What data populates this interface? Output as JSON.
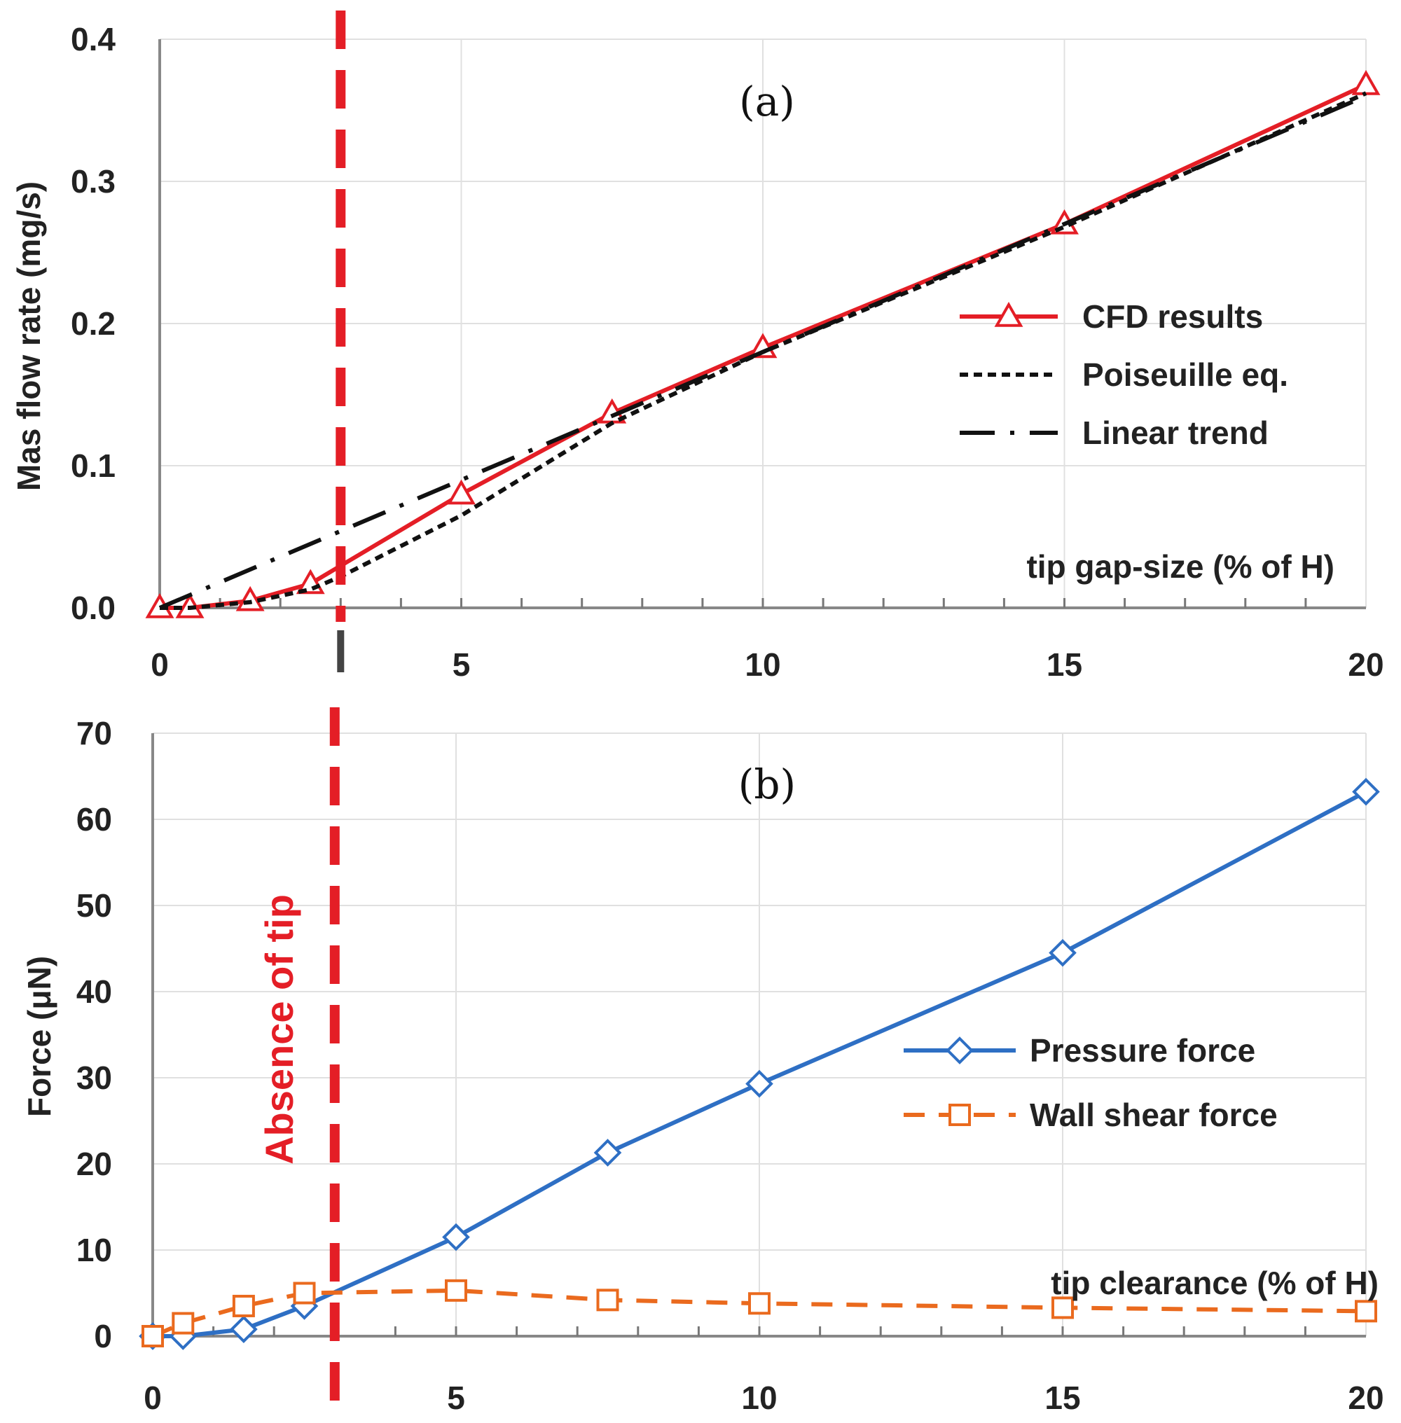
{
  "chart_data": [
    {
      "type": "line",
      "panel_label": "(a)",
      "ylabel": "Mas flow rate (mg/s)",
      "xlabel": "tip gap-size (% of H)",
      "xlim": [
        0,
        20
      ],
      "ylim": [
        0,
        0.4
      ],
      "xticks": [
        "0",
        "5",
        "10",
        "15",
        "20"
      ],
      "yticks": [
        "0.0",
        "0.1",
        "0.2",
        "0.3",
        "0.4"
      ],
      "grid": true,
      "legend_position": "center-right",
      "series": [
        {
          "name": "CFD results",
          "color": "#e41e26",
          "style": "solid",
          "marker": "triangle",
          "x": [
            0,
            0.5,
            1.5,
            2.5,
            5,
            7.5,
            10,
            15,
            20
          ],
          "y": [
            0.0,
            0.0,
            0.005,
            0.017,
            0.08,
            0.137,
            0.183,
            0.27,
            0.368
          ]
        },
        {
          "name": "Poiseuille eq.",
          "color": "#111111",
          "style": "dotted",
          "marker": "none",
          "x": [
            0,
            0.5,
            1.5,
            2.5,
            3,
            5,
            7.5,
            10,
            15,
            20
          ],
          "y": [
            0.0,
            0.0,
            0.004,
            0.013,
            0.022,
            0.065,
            0.13,
            0.18,
            0.268,
            0.362
          ]
        },
        {
          "name": "Linear trend",
          "color": "#111111",
          "style": "dashdot",
          "marker": "none",
          "x": [
            0,
            20
          ],
          "y": [
            0.0,
            0.36
          ]
        }
      ]
    },
    {
      "type": "line",
      "panel_label": "(b)",
      "ylabel": "Force (μN)",
      "xlabel": "tip clearance (% of H)",
      "xlim": [
        0,
        20
      ],
      "ylim": [
        0,
        70
      ],
      "xticks": [
        "0",
        "5",
        "10",
        "15",
        "20"
      ],
      "yticks": [
        "0",
        "10",
        "20",
        "30",
        "40",
        "50",
        "60",
        "70"
      ],
      "grid": true,
      "legend_position": "center-right",
      "series": [
        {
          "name": "Pressure force",
          "color": "#2e6fc4",
          "style": "solid",
          "marker": "diamond",
          "x": [
            0,
            0.5,
            1.5,
            2.5,
            5,
            7.5,
            10,
            15,
            20
          ],
          "y": [
            0.0,
            0.0,
            0.8,
            3.5,
            11.5,
            21.3,
            29.3,
            44.5,
            63.2
          ]
        },
        {
          "name": "Wall shear force",
          "color": "#ea6a1e",
          "style": "dashed",
          "marker": "square",
          "x": [
            0,
            0.5,
            1.5,
            2.5,
            5,
            7.5,
            10,
            15,
            20
          ],
          "y": [
            0.0,
            1.5,
            3.5,
            5.0,
            5.3,
            4.2,
            3.8,
            3.3,
            2.9
          ]
        }
      ]
    }
  ],
  "annotation": {
    "text": "Absence of tip",
    "x": 3,
    "color": "#e41e26"
  }
}
